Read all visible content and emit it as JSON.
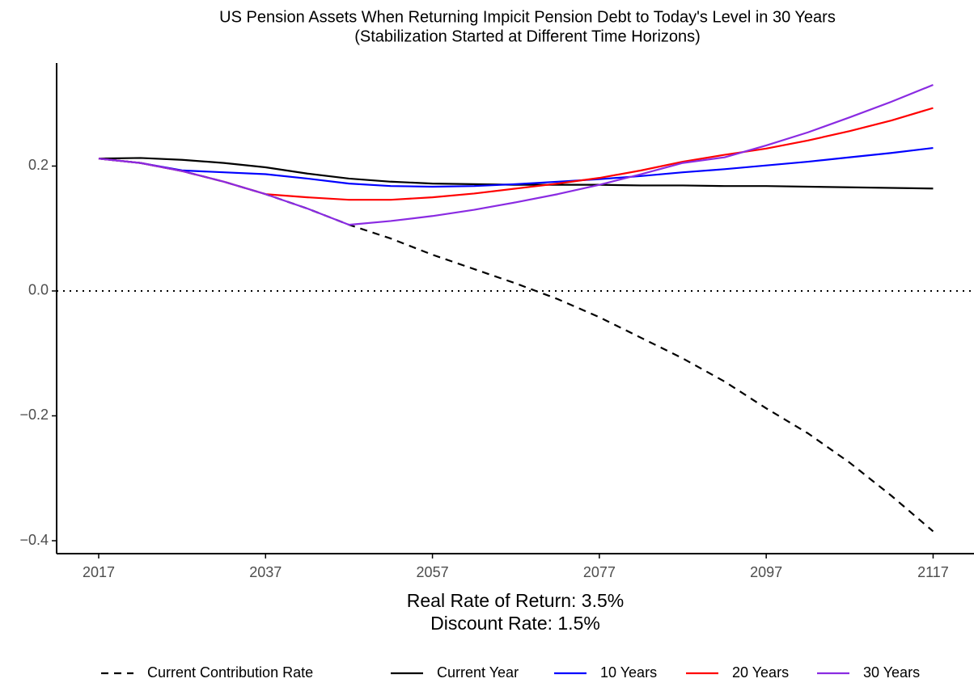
{
  "chart_data": {
    "type": "line",
    "title": "US Pension Assets When Returning Impicit Pension Debt to Today's Level in 30 Years",
    "subtitle": "(Stabilization Started at Different Time Horizons)",
    "x_label": "Real Rate of Return: 3.5%",
    "x_label_2": "Discount Rate: 1.5%",
    "x": [
      2017,
      2022,
      2027,
      2032,
      2037,
      2042,
      2047,
      2052,
      2057,
      2062,
      2067,
      2072,
      2077,
      2082,
      2087,
      2092,
      2097,
      2102,
      2107,
      2112,
      2117
    ],
    "series": [
      {
        "name": "Current Contribution Rate",
        "color": "#000000",
        "dashed": true,
        "values": [
          0.212,
          0.205,
          0.192,
          0.175,
          0.155,
          0.132,
          0.106,
          0.084,
          0.058,
          0.035,
          0.012,
          -0.013,
          -0.042,
          -0.075,
          -0.108,
          -0.145,
          -0.188,
          -0.228,
          -0.275,
          -0.328,
          -0.385
        ]
      },
      {
        "name": "Current Year",
        "color": "#000000",
        "values": [
          0.212,
          0.213,
          0.21,
          0.205,
          0.198,
          0.188,
          0.18,
          0.175,
          0.172,
          0.171,
          0.17,
          0.17,
          0.17,
          0.169,
          0.169,
          0.168,
          0.168,
          0.167,
          0.166,
          0.165,
          0.164
        ]
      },
      {
        "name": "10 Years",
        "color": "#0000ff",
        "values": [
          0.212,
          0.205,
          0.193,
          0.19,
          0.187,
          0.18,
          0.172,
          0.168,
          0.167,
          0.168,
          0.171,
          0.175,
          0.179,
          0.184,
          0.19,
          0.195,
          0.201,
          0.207,
          0.214,
          0.221,
          0.229
        ]
      },
      {
        "name": "20 Years",
        "color": "#ff0000",
        "values": [
          0.212,
          0.205,
          0.192,
          0.175,
          0.155,
          0.15,
          0.146,
          0.146,
          0.15,
          0.156,
          0.164,
          0.172,
          0.181,
          0.193,
          0.207,
          0.218,
          0.228,
          0.241,
          0.256,
          0.273,
          0.293
        ]
      },
      {
        "name": "30 Years",
        "color": "#8a2be2",
        "values": [
          0.212,
          0.205,
          0.192,
          0.175,
          0.155,
          0.132,
          0.106,
          0.112,
          0.12,
          0.13,
          0.142,
          0.155,
          0.17,
          0.187,
          0.205,
          0.214,
          0.233,
          0.254,
          0.278,
          0.303,
          0.33
        ]
      }
    ],
    "reference_line": 0,
    "xlim": [
      2011.96,
      2121.9
    ],
    "ylim": [
      -0.4207,
      0.365
    ],
    "xticks": [
      2017,
      2037,
      2057,
      2077,
      2097,
      2117
    ],
    "yticks": [
      {
        "value": -0.4,
        "label": "−0.4"
      },
      {
        "value": -0.2,
        "label": "−0.2"
      },
      {
        "value": 0,
        "label": "0.0"
      },
      0.2
    ],
    "grid": false,
    "legend_position": "bottom"
  }
}
